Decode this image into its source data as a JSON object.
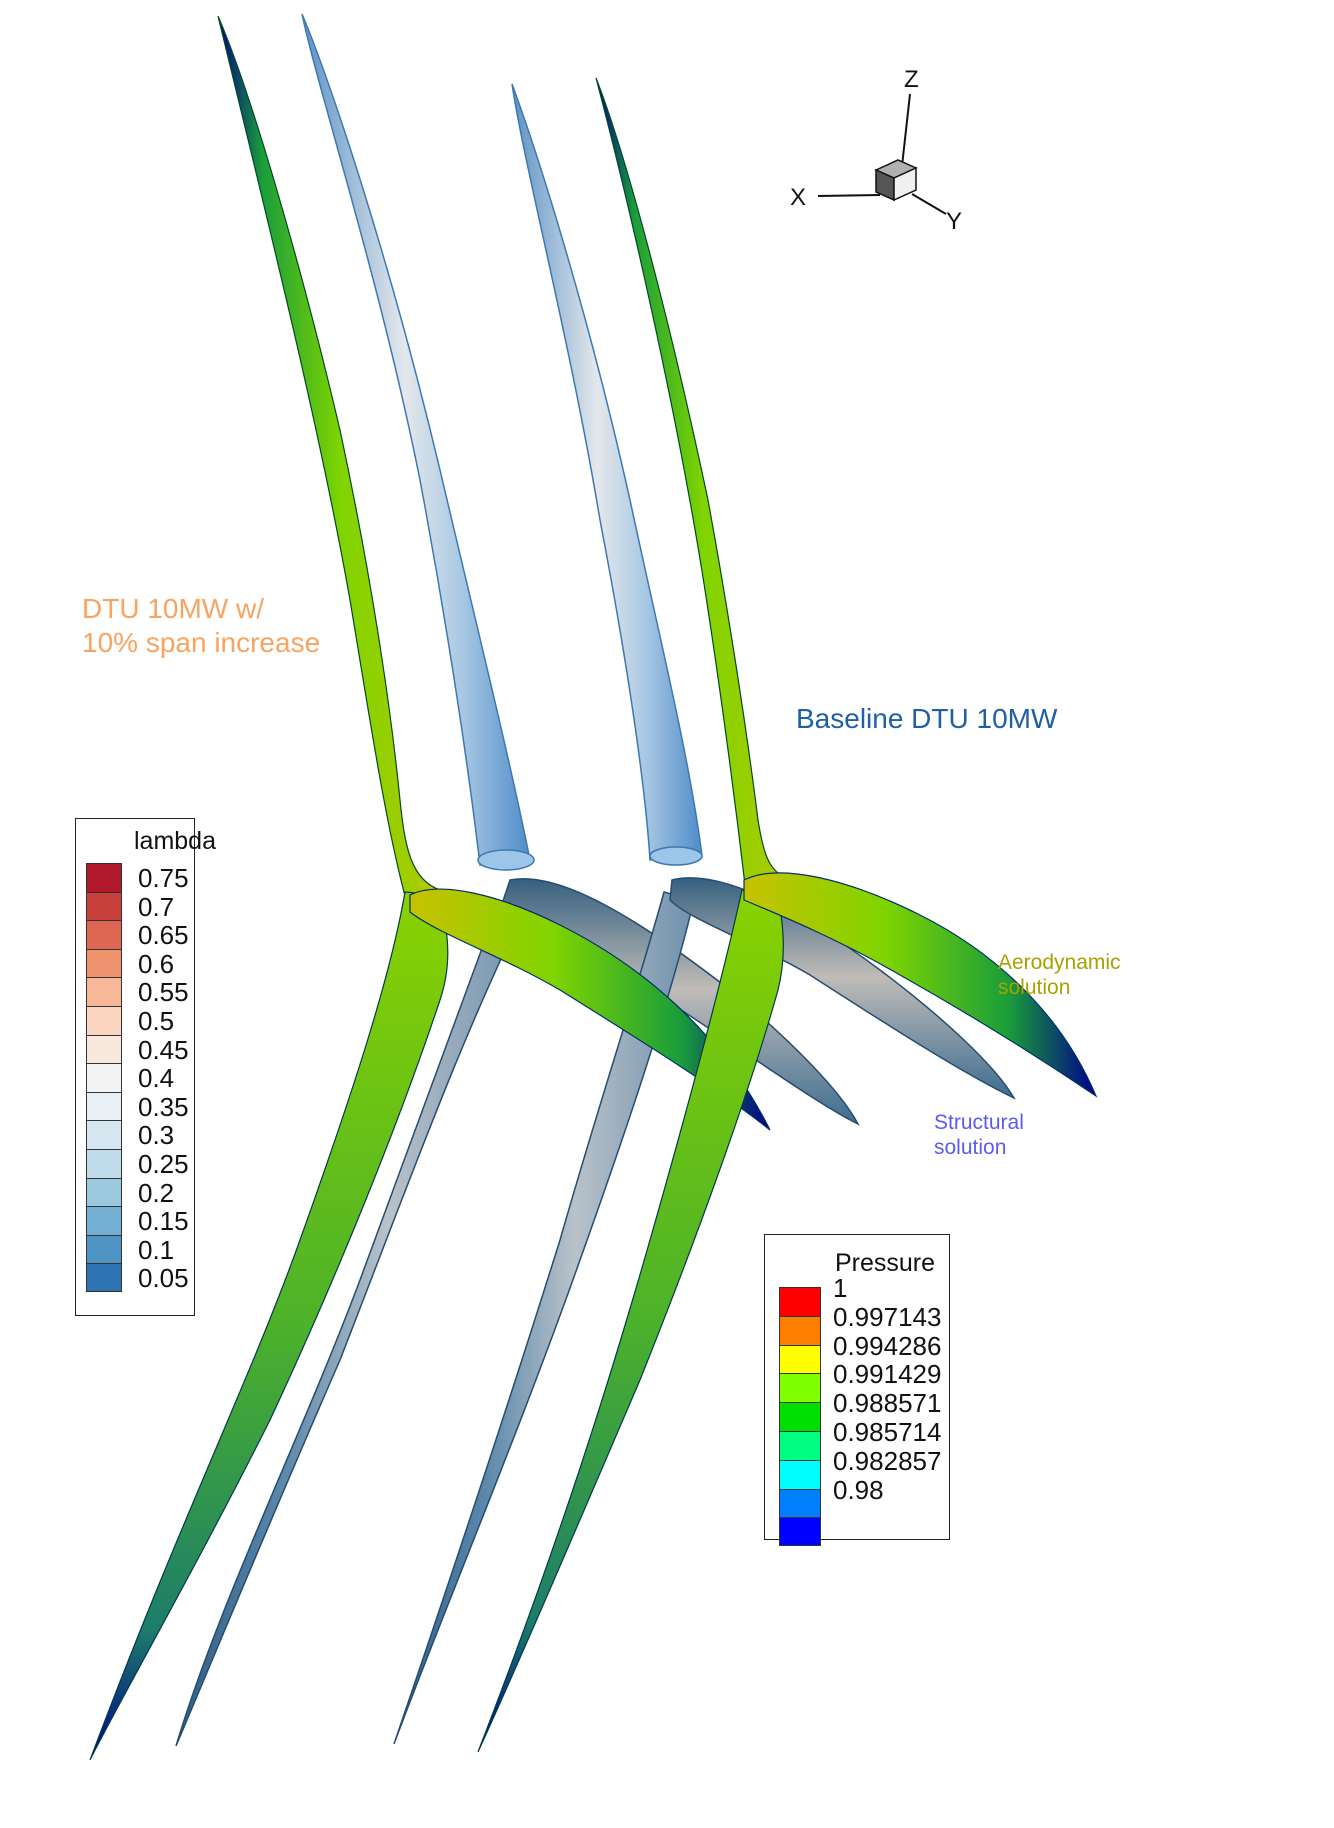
{
  "axes": {
    "x": "X",
    "y": "Y",
    "z": "Z"
  },
  "annotations": {
    "modified": {
      "line1": "DTU 10MW w/",
      "line2": "10% span increase",
      "color": "#f8a460"
    },
    "baseline": {
      "text": "Baseline DTU 10MW",
      "color": "#1f5fa6"
    },
    "aero": {
      "line1": "Aerodynamic",
      "line2": "solution",
      "color": "#a7a200"
    },
    "structural": {
      "line1": "Structural",
      "line2": "solution",
      "color": "#5b5bf2"
    }
  },
  "lambda_legend": {
    "title": "lambda",
    "levels": [
      {
        "label": "0.75",
        "color": "#b2182b"
      },
      {
        "label": "0.7",
        "color": "#c9403b"
      },
      {
        "label": "0.65",
        "color": "#de6753"
      },
      {
        "label": "0.6",
        "color": "#f0936f"
      },
      {
        "label": "0.55",
        "color": "#f7b799"
      },
      {
        "label": "0.5",
        "color": "#fbd5c0"
      },
      {
        "label": "0.45",
        "color": "#f9e8de"
      },
      {
        "label": "0.4",
        "color": "#f4f4f4"
      },
      {
        "label": "0.35",
        "color": "#e8f0f5"
      },
      {
        "label": "0.3",
        "color": "#d6e7f1"
      },
      {
        "label": "0.25",
        "color": "#c0dbea"
      },
      {
        "label": "0.2",
        "color": "#9dc9e0"
      },
      {
        "label": "0.15",
        "color": "#73b0d4"
      },
      {
        "label": "0.1",
        "color": "#4e94c4"
      },
      {
        "label": "0.05",
        "color": "#2f74b2"
      }
    ]
  },
  "pressure_legend": {
    "title": "Pressure",
    "levels": [
      {
        "label": "1",
        "color": "#ff0000"
      },
      {
        "label": "0.997143",
        "color": "#ff8000"
      },
      {
        "label": "0.994286",
        "color": "#ffff00"
      },
      {
        "label": "0.991429",
        "color": "#80ff00"
      },
      {
        "label": "0.988571",
        "color": "#00e000"
      },
      {
        "label": "0.985714",
        "color": "#00ff80"
      },
      {
        "label": "0.982857",
        "color": "#00ffff"
      },
      {
        "label": "0.98",
        "color": "#0080ff"
      },
      {
        "label": "",
        "color": "#0000ff"
      }
    ]
  }
}
